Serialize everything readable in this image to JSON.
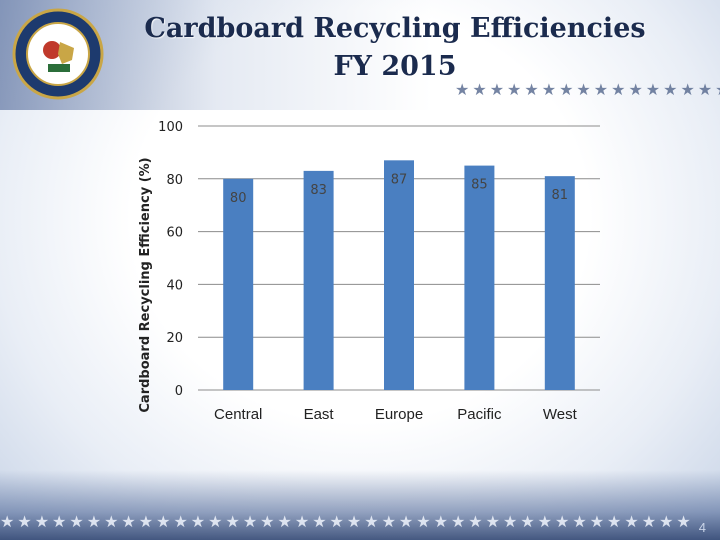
{
  "slide": {
    "title_line1": "Cardboard Recycling Efficiencies",
    "title_line2": "FY 2015",
    "page_number": "4"
  },
  "seal": {
    "icon": "agency-seal-icon"
  },
  "colors": {
    "bar": "#4a7fc1",
    "grid": "#8c8c8c",
    "title": "#1b2b4e"
  },
  "chart_data": {
    "type": "bar",
    "categories": [
      "Central",
      "East",
      "Europe",
      "Pacific",
      "West"
    ],
    "values": [
      80,
      83,
      87,
      85,
      81
    ],
    "title": "",
    "xlabel": "",
    "ylabel": "Cardboard Recycling Efficiency (%)",
    "ylim": [
      0,
      100
    ],
    "yticks": [
      0,
      20,
      40,
      60,
      80,
      100
    ],
    "grid": true,
    "data_labels": true
  }
}
